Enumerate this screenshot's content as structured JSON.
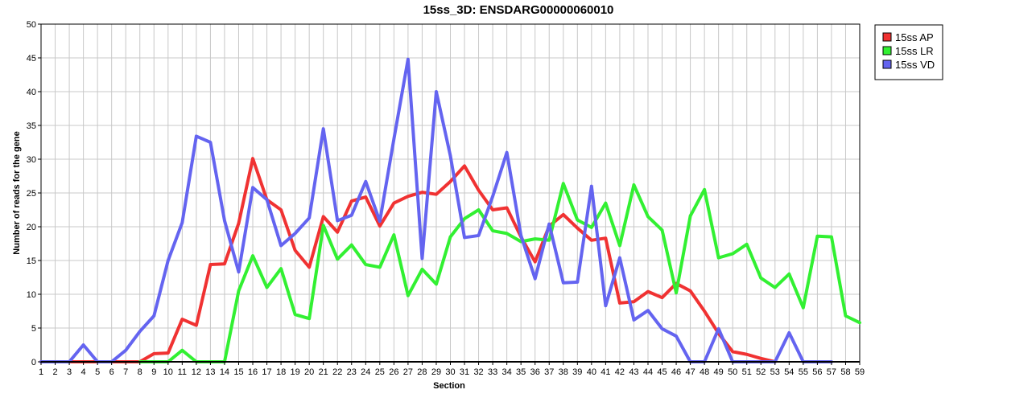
{
  "chart_data": {
    "type": "line",
    "title": "15ss_3D: ENSDARG00000060010",
    "xlabel": "Section",
    "ylabel": "Number of reads for the gene",
    "ylim": [
      0,
      50
    ],
    "yticks": [
      0,
      5,
      10,
      15,
      20,
      25,
      30,
      35,
      40,
      45,
      50
    ],
    "grid": true,
    "legend_position": "top-right",
    "x": [
      1,
      2,
      3,
      4,
      5,
      6,
      7,
      8,
      9,
      10,
      11,
      12,
      13,
      14,
      15,
      16,
      17,
      18,
      19,
      20,
      21,
      22,
      23,
      24,
      25,
      26,
      27,
      28,
      29,
      30,
      31,
      32,
      33,
      34,
      35,
      36,
      37,
      38,
      39,
      40,
      41,
      42,
      43,
      44,
      45,
      46,
      47,
      48,
      49,
      50,
      51,
      52,
      53,
      54,
      55,
      56,
      57,
      58,
      59
    ],
    "series": [
      {
        "name": "15ss AP",
        "color": "#f03232",
        "values": [
          0,
          0,
          0,
          0,
          0,
          0,
          0,
          0,
          1.2,
          1.3,
          6.3,
          5.4,
          14.4,
          14.5,
          20.5,
          30.1,
          24,
          22.5,
          16.5,
          14,
          21.5,
          19.2,
          23.8,
          24.4,
          20.1,
          23.5,
          24.5,
          25.1,
          24.8,
          26.7,
          29,
          25.4,
          22.5,
          22.8,
          18.5,
          14.8,
          20.1,
          21.8,
          19.8,
          18,
          18.3,
          8.7,
          8.9,
          10.4,
          9.5,
          11.6,
          10.5,
          7.5,
          4.2,
          1.5,
          1.1,
          0.5,
          0,
          null,
          null,
          null,
          null,
          null,
          null
        ]
      },
      {
        "name": "15ss LR",
        "color": "#32f032",
        "values": [
          null,
          null,
          null,
          null,
          null,
          null,
          null,
          0,
          0,
          0,
          1.7,
          0,
          0,
          0,
          10.5,
          15.7,
          11,
          13.8,
          7,
          6.4,
          20.2,
          15.2,
          17.3,
          14.4,
          14,
          18.8,
          9.8,
          13.7,
          11.5,
          18.5,
          21.2,
          22.5,
          19.4,
          19,
          17.8,
          18.2,
          18,
          26.4,
          21,
          19.9,
          23.5,
          17.2,
          26.2,
          21.5,
          19.5,
          10.2,
          21.6,
          25.5,
          15.4,
          16,
          17.4,
          12.4,
          11,
          13,
          8,
          18.6,
          18.5,
          6.8,
          5.8
        ]
      },
      {
        "name": "15ss VD",
        "color": "#6464f0",
        "values": [
          0,
          0,
          0,
          2.5,
          0,
          0,
          1.7,
          4.5,
          6.8,
          15,
          20.6,
          33.4,
          32.5,
          20.9,
          13.3,
          25.8,
          24,
          17.2,
          19,
          21.3,
          34.5,
          20.9,
          21.7,
          26.7,
          20.8,
          33,
          44.8,
          15.3,
          40,
          30.5,
          18.4,
          18.7,
          24.5,
          31,
          18.7,
          12.3,
          20.4,
          11.7,
          11.8,
          26,
          8.3,
          15.4,
          6.2,
          7.6,
          4.9,
          3.8,
          0,
          0,
          4.9,
          0,
          0,
          0,
          0,
          4.3,
          0,
          0,
          0,
          null,
          null
        ]
      }
    ]
  }
}
